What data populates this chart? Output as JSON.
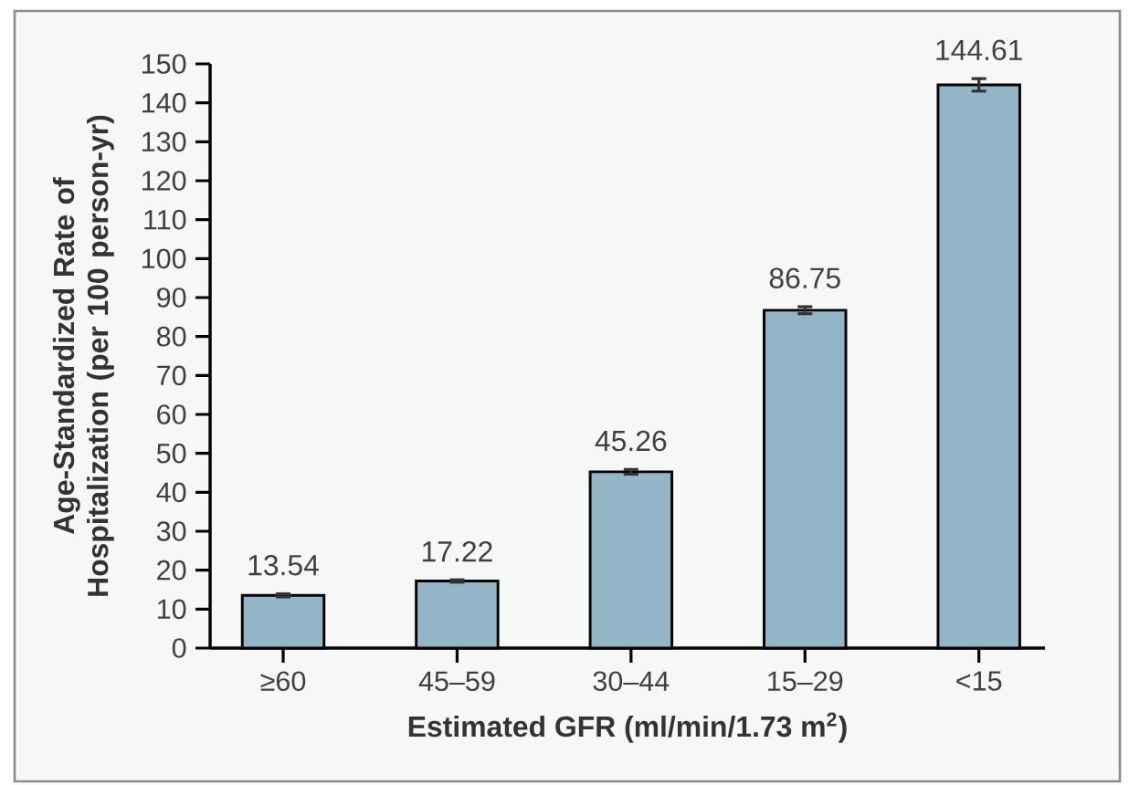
{
  "chart_data": {
    "type": "bar",
    "xlabel": "Estimated GFR (ml/min/1.73 m$^{2}$)",
    "ylabel": "Age-Standardized Rate of Hospitalization (per 100 person-yr)",
    "categories": [
      "≥60",
      "45–59",
      "30–44",
      "15–29",
      "<15"
    ],
    "values": [
      13.54,
      17.22,
      45.26,
      86.75,
      144.61
    ],
    "errors": [
      0.4,
      0.3,
      0.6,
      0.9,
      1.6
    ],
    "color": "#94b4c8",
    "ylim": [
      0,
      150
    ],
    "yticks": [
      0,
      10,
      20,
      30,
      40,
      50,
      60,
      70,
      80,
      90,
      100,
      110,
      120,
      130,
      140,
      150
    ],
    "data_labels": true
  }
}
